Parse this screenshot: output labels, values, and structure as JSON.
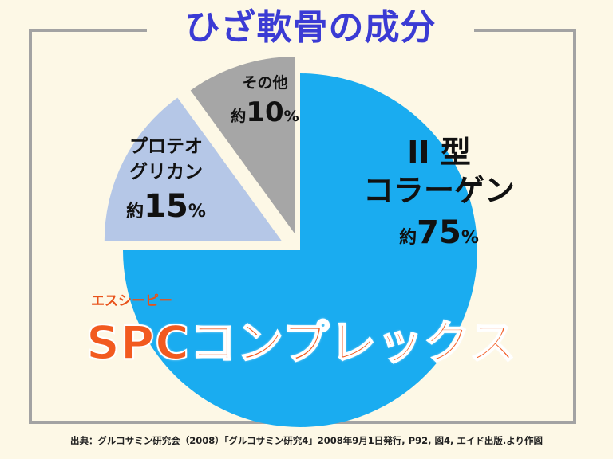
{
  "title": "ひざ軟骨の成分",
  "chart_data": {
    "type": "pie",
    "title": "ひざ軟骨の成分",
    "slices": [
      {
        "label_line1": "II 型",
        "label_line2": "コラーゲン",
        "prefix": "約",
        "number": "75",
        "suffix": "%",
        "value": 75,
        "color": "#1aacf0"
      },
      {
        "label_line1": "プロテオ",
        "label_line2": "グリカン",
        "prefix": "約",
        "number": "15",
        "suffix": "%",
        "value": 15,
        "color": "#b5c7e7"
      },
      {
        "label_line1": "その他",
        "label_line2": "",
        "prefix": "約",
        "number": "10",
        "suffix": "%",
        "value": 10,
        "color": "#a6a6a6"
      }
    ]
  },
  "overlay": {
    "ruby": "エスシーピー",
    "main": "SPCコンプレックス"
  },
  "source": "出典：グルコサミン研究会（2008）「グルコサミン研究4」2008年9月1日発行, P92, 図4, エイド出版.より作図"
}
